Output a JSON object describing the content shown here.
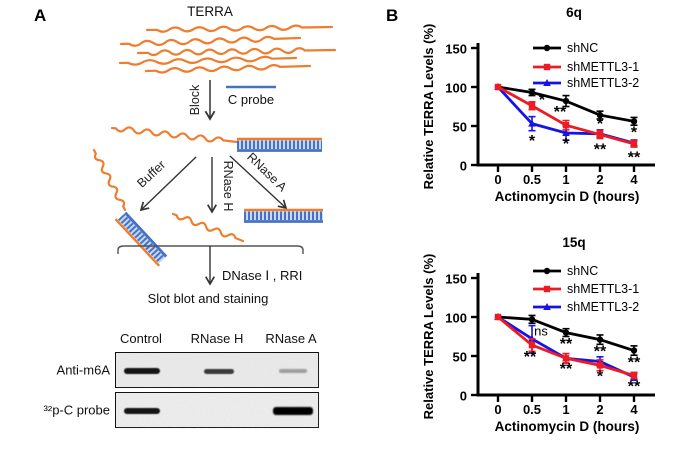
{
  "panel_a": {
    "label": "A",
    "terra_label": "TERRA",
    "block_label": "Block",
    "c_probe_label": "C probe",
    "buffer_label": "Buffer",
    "rnase_h_label": "RNase H",
    "rnase_a_label": "RNase A",
    "dnase_label": "DNase Ⅰ , RRI",
    "slot_blot_label": "Slot blot and staining",
    "colors": {
      "rna_orange": "#EE7D2E",
      "probe_blue": "#4472C4",
      "probe_light": "#C9D7F0"
    },
    "blot": {
      "columns": [
        "Control",
        "RNase H",
        "RNase A"
      ],
      "rows": [
        {
          "label": "Anti-m6A",
          "bands": [
            {
              "col": 0,
              "intensity": "strong"
            },
            {
              "col": 1,
              "intensity": "medium"
            },
            {
              "col": 2,
              "intensity": "faint"
            }
          ]
        },
        {
          "label": "³²p-C probe",
          "bands": [
            {
              "col": 0,
              "intensity": "strong"
            },
            {
              "col": 2,
              "intensity": "very-strong"
            }
          ]
        }
      ]
    }
  },
  "panel_b": {
    "label": "B"
  },
  "chart_data": [
    {
      "type": "line",
      "title": "6q",
      "xlabel": "Actinomycin D (hours)",
      "ylabel": "Relative TERRA Levels (%)",
      "categories": [
        "0",
        "0.5",
        "1",
        "2",
        "4"
      ],
      "ylim": [
        0,
        150
      ],
      "yticks": [
        0,
        50,
        100,
        150
      ],
      "grid": false,
      "legend_position": "top-right-inside",
      "series": [
        {
          "name": "shNC",
          "color": "#000000",
          "marker": "circle",
          "values": [
            100,
            93,
            82,
            64,
            56
          ],
          "errors": [
            0,
            4,
            7,
            5,
            5
          ]
        },
        {
          "name": "shMETTL3-1",
          "color": "#ED1C24",
          "marker": "square",
          "values": [
            100,
            76,
            51,
            39,
            27
          ],
          "errors": [
            0,
            5,
            6,
            5,
            4
          ]
        },
        {
          "name": "shMETTL3-2",
          "color": "#1414E8",
          "marker": "triangle",
          "values": [
            100,
            53,
            41,
            40,
            28
          ],
          "errors": [
            0,
            9,
            9,
            5,
            4
          ]
        }
      ],
      "annotations": [
        {
          "text": "*",
          "x": 1,
          "y": 83,
          "dx": 10
        },
        {
          "text": "*",
          "x": 1,
          "y": 30
        },
        {
          "text": "**",
          "x": 2,
          "y": 67,
          "dx": -6
        },
        {
          "text": "*",
          "x": 2,
          "y": 26
        },
        {
          "text": "*",
          "x": 3,
          "y": 52
        },
        {
          "text": "**",
          "x": 3,
          "y": 19
        },
        {
          "text": "*",
          "x": 4,
          "y": 41
        },
        {
          "text": "**",
          "x": 4,
          "y": 9
        }
      ]
    },
    {
      "type": "line",
      "title": "15q",
      "xlabel": "Actinomycin D (hours)",
      "ylabel": "Relative TERRA Levels (%)",
      "categories": [
        "0",
        "0.5",
        "1",
        "2",
        "4"
      ],
      "ylim": [
        0,
        150
      ],
      "yticks": [
        0,
        50,
        100,
        150
      ],
      "grid": false,
      "legend_position": "top-right-inside",
      "series": [
        {
          "name": "shNC",
          "color": "#000000",
          "marker": "circle",
          "values": [
            100,
            97,
            80,
            71,
            57
          ],
          "errors": [
            0,
            5,
            5,
            6,
            6
          ]
        },
        {
          "name": "shMETTL3-1",
          "color": "#ED1C24",
          "marker": "square",
          "values": [
            100,
            64,
            47,
            38,
            25
          ],
          "errors": [
            0,
            8,
            6,
            7,
            4
          ]
        },
        {
          "name": "shMETTL3-2",
          "color": "#1414E8",
          "marker": "triangle",
          "values": [
            100,
            72,
            47,
            43,
            23
          ],
          "errors": [
            0,
            17,
            6,
            6,
            4
          ]
        }
      ],
      "annotations": [
        {
          "text": "ns",
          "x": 1,
          "y": 82,
          "dx": 9,
          "size": 13,
          "weight": "normal"
        },
        {
          "text": "**",
          "x": 1,
          "y": 48,
          "dx": -2
        },
        {
          "text": "**",
          "x": 2,
          "y": 65
        },
        {
          "text": "**",
          "x": 2,
          "y": 33
        },
        {
          "text": "**",
          "x": 3,
          "y": 55
        },
        {
          "text": "*",
          "x": 3,
          "y": 23
        },
        {
          "text": "**",
          "x": 4,
          "y": 41
        },
        {
          "text": "**",
          "x": 4,
          "y": 10
        }
      ]
    }
  ]
}
